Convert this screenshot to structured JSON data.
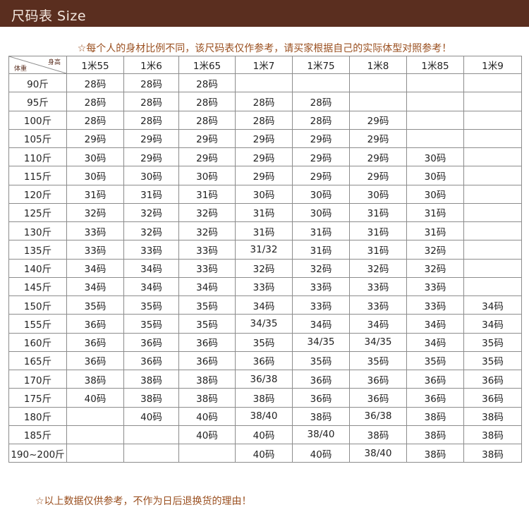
{
  "header": {
    "title": "尺码表  Size"
  },
  "notice": "☆每个人的身材比例不同，该尺码表仅作参考，请买家根据自己的实际体型对照参考！",
  "footer": "☆以上数据仅供参考，不作为日后退换货的理由！",
  "table": {
    "corner_top": "身高",
    "corner_bottom": "体重",
    "columns": [
      "1米55",
      "1米6",
      "1米65",
      "1米7",
      "1米75",
      "1米8",
      "1米85",
      "1米9"
    ],
    "rows": [
      {
        "weight": "90斤",
        "cells": [
          "28码",
          "28码",
          "28码",
          "",
          "",
          "",
          "",
          ""
        ]
      },
      {
        "weight": "95斤",
        "cells": [
          "28码",
          "28码",
          "28码",
          "28码",
          "28码",
          "",
          "",
          ""
        ]
      },
      {
        "weight": "100斤",
        "cells": [
          "28码",
          "28码",
          "28码",
          "28码",
          "28码",
          "29码",
          "",
          ""
        ]
      },
      {
        "weight": "105斤",
        "cells": [
          "29码",
          "29码",
          "29码",
          "29码",
          "29码",
          "29码",
          "",
          ""
        ]
      },
      {
        "weight": "110斤",
        "cells": [
          "30码",
          "29码",
          "29码",
          "29码",
          "29码",
          "29码",
          "30码",
          ""
        ]
      },
      {
        "weight": "115斤",
        "cells": [
          "30码",
          "30码",
          "30码",
          "29码",
          "29码",
          "29码",
          "30码",
          ""
        ]
      },
      {
        "weight": "120斤",
        "cells": [
          "31码",
          "31码",
          "31码",
          "30码",
          "30码",
          "30码",
          "30码",
          ""
        ]
      },
      {
        "weight": "125斤",
        "cells": [
          "32码",
          "32码",
          "32码",
          "31码",
          "30码",
          "31码",
          "31码",
          ""
        ]
      },
      {
        "weight": "130斤",
        "cells": [
          "33码",
          "32码",
          "32码",
          "31码",
          "31码",
          "31码",
          "31码",
          ""
        ]
      },
      {
        "weight": "135斤",
        "cells": [
          "33码",
          "33码",
          "33码",
          "31/32",
          "31码",
          "31码",
          "32码",
          ""
        ]
      },
      {
        "weight": "140斤",
        "cells": [
          "34码",
          "34码",
          "33码",
          "32码",
          "32码",
          "32码",
          "32码",
          ""
        ]
      },
      {
        "weight": "145斤",
        "cells": [
          "34码",
          "34码",
          "34码",
          "33码",
          "33码",
          "33码",
          "33码",
          ""
        ]
      },
      {
        "weight": "150斤",
        "cells": [
          "35码",
          "35码",
          "35码",
          "34码",
          "33码",
          "33码",
          "33码",
          "34码"
        ]
      },
      {
        "weight": "155斤",
        "cells": [
          "36码",
          "35码",
          "35码",
          "34/35",
          "34码",
          "34码",
          "34码",
          "34码"
        ]
      },
      {
        "weight": "160斤",
        "cells": [
          "36码",
          "36码",
          "36码",
          "35码",
          "34/35",
          "34/35",
          "34码",
          "35码"
        ]
      },
      {
        "weight": "165斤",
        "cells": [
          "36码",
          "36码",
          "36码",
          "36码",
          "35码",
          "35码",
          "35码",
          "35码"
        ]
      },
      {
        "weight": "170斤",
        "cells": [
          "38码",
          "38码",
          "38码",
          "36/38",
          "36码",
          "36码",
          "36码",
          "36码"
        ]
      },
      {
        "weight": "175斤",
        "cells": [
          "40码",
          "38码",
          "38码",
          "38码",
          "36码",
          "36码",
          "36码",
          "36码"
        ]
      },
      {
        "weight": "180斤",
        "cells": [
          "",
          "40码",
          "40码",
          "38/40",
          "38码",
          "36/38",
          "38码",
          "38码"
        ]
      },
      {
        "weight": "185斤",
        "cells": [
          "",
          "",
          "40码",
          "40码",
          "38/40",
          "38码",
          "38码",
          "38码"
        ]
      },
      {
        "weight": "190~200斤",
        "cells": [
          "",
          "",
          "",
          "40码",
          "40码",
          "38/40",
          "38码",
          "38码"
        ]
      }
    ]
  }
}
